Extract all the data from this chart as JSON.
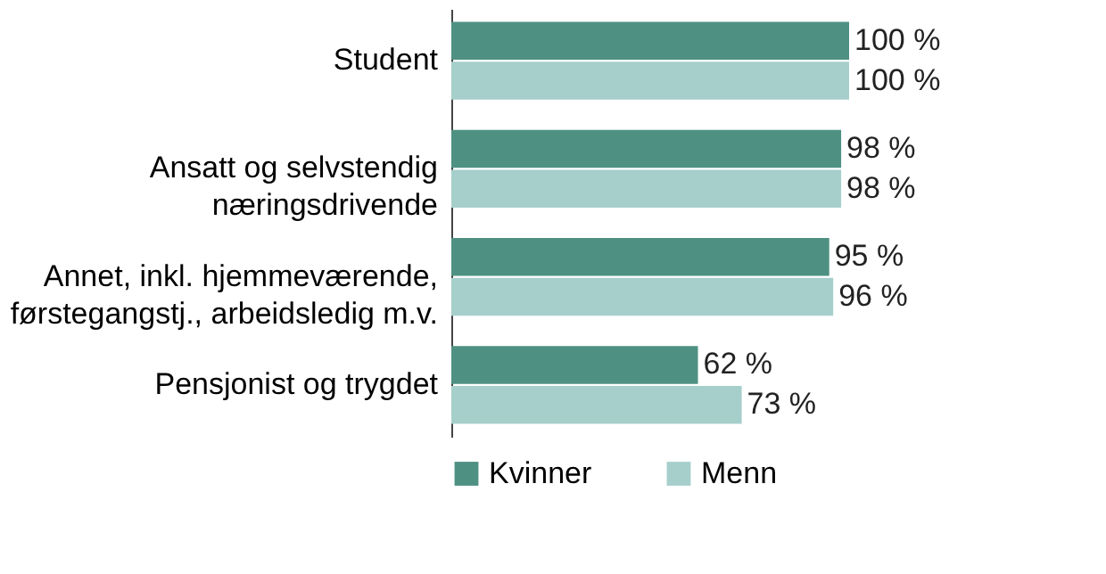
{
  "chart_data": {
    "type": "bar",
    "orientation": "horizontal",
    "categories": [
      "Student",
      "Ansatt og selvstendig\nnæringsdrivende",
      "Annet, inkl. hjemmeværende,\nførstegangstj., arbeidsledig m.v.",
      "Pensjonist og trygdet"
    ],
    "series": [
      {
        "name": "Kvinner",
        "color": "#4e9182",
        "values": [
          100,
          98,
          95,
          62
        ],
        "value_labels": [
          "100 %",
          "98 %",
          "95 %",
          "62 %"
        ]
      },
      {
        "name": "Menn",
        "color": "#a6cfcb",
        "values": [
          100,
          98,
          96,
          73
        ],
        "value_labels": [
          "100 %",
          "98 %",
          "96 %",
          "73 %"
        ]
      }
    ],
    "legend": "bottom",
    "grid": false,
    "tick_labels": "y"
  }
}
